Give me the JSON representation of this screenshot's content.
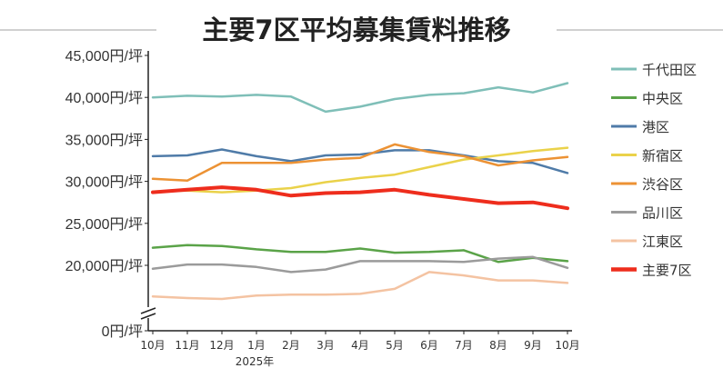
{
  "chart_data": {
    "type": "line",
    "title": "主要7区平均募集賃料推移",
    "y_unit_suffix": "円/坪",
    "yticks": [
      0,
      20000,
      25000,
      30000,
      35000,
      40000,
      45000
    ],
    "ytick_labels": [
      "0円/坪",
      "20,000円/坪",
      "25,000円/坪",
      "30,000円/坪",
      "35,000円/坪",
      "40,000円/坪",
      "45,000円/坪"
    ],
    "axis_break": true,
    "categories": [
      "10月",
      "11月",
      "12月",
      "1月",
      "2月",
      "3月",
      "4月",
      "5月",
      "6月",
      "7月",
      "8月",
      "9月",
      "10月"
    ],
    "year_label": "2025年",
    "year_label_under": "1月",
    "legend_position": "right",
    "series": [
      {
        "name": "千代田区",
        "color": "#7fbfb8",
        "width": 2.5,
        "values": [
          40000,
          40200,
          40100,
          40300,
          40100,
          38300,
          38900,
          39800,
          40300,
          40500,
          41200,
          40600,
          41700
        ]
      },
      {
        "name": "中央区",
        "color": "#5aa348",
        "width": 2.5,
        "values": [
          22100,
          22400,
          22300,
          21900,
          21600,
          21600,
          22000,
          21500,
          21600,
          21800,
          20400,
          20900,
          20500
        ]
      },
      {
        "name": "港区",
        "color": "#4f7ba8",
        "width": 2.5,
        "values": [
          33000,
          33100,
          33800,
          33000,
          32400,
          33100,
          33200,
          33700,
          33700,
          33100,
          32400,
          32200,
          31000
        ]
      },
      {
        "name": "新宿区",
        "color": "#ead24a",
        "width": 2.5,
        "values": [
          28800,
          28900,
          28700,
          28900,
          29200,
          29900,
          30400,
          30800,
          31700,
          32600,
          33100,
          33600,
          34000
        ]
      },
      {
        "name": "渋谷区",
        "color": "#ec9234",
        "width": 2.5,
        "values": [
          30300,
          30100,
          32200,
          32200,
          32200,
          32600,
          32800,
          34400,
          33500,
          33000,
          31900,
          32500,
          32900
        ]
      },
      {
        "name": "品川区",
        "color": "#9b9b9b",
        "width": 2.5,
        "values": [
          19600,
          20100,
          20100,
          19800,
          19200,
          19500,
          20500,
          20500,
          20500,
          20400,
          20800,
          21000,
          19700
        ]
      },
      {
        "name": "江東区",
        "color": "#f4c3a2",
        "width": 2.5,
        "values": [
          16300,
          16100,
          16000,
          16400,
          16500,
          16500,
          16600,
          17200,
          19200,
          18800,
          18200,
          18200,
          17900
        ]
      },
      {
        "name": "主要7区",
        "color": "#ee2d1d",
        "width": 4,
        "values": [
          28700,
          29000,
          29300,
          29000,
          28300,
          28600,
          28700,
          29000,
          28400,
          27900,
          27400,
          27500,
          26800
        ]
      }
    ]
  }
}
